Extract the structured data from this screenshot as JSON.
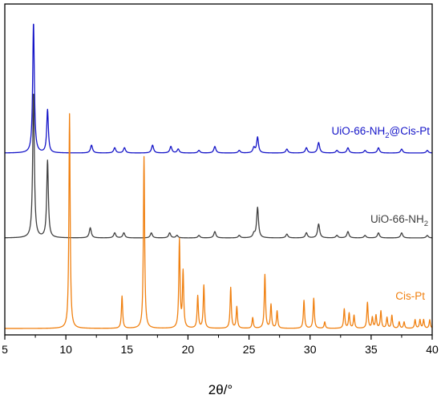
{
  "chart_data": {
    "type": "line",
    "xlabel": "2θ/°",
    "xlim": [
      5,
      40
    ],
    "x_ticks": [
      5,
      10,
      15,
      20,
      25,
      30,
      35,
      40
    ],
    "grid": false,
    "y_axis_shown": false,
    "colors": {
      "UiO-66-NH2@Cis-Pt": "#1515c8",
      "UiO-66-NH2": "#404040",
      "Cis-Pt": "#f08010"
    },
    "series": [
      {
        "name": "UiO-66-NH2@Cis-Pt",
        "label_parts": [
          "UiO-66-NH",
          "2",
          "@Cis-Pt"
        ],
        "baseline": 0.0,
        "peaks": [
          [
            7.35,
            1.0,
            0.08
          ],
          [
            8.5,
            0.33,
            0.08
          ],
          [
            12.1,
            0.06,
            0.1
          ],
          [
            14.0,
            0.04,
            0.1
          ],
          [
            14.8,
            0.04,
            0.1
          ],
          [
            17.1,
            0.06,
            0.1
          ],
          [
            18.6,
            0.05,
            0.1
          ],
          [
            19.2,
            0.03,
            0.1
          ],
          [
            20.9,
            0.02,
            0.1
          ],
          [
            22.2,
            0.05,
            0.1
          ],
          [
            24.2,
            0.02,
            0.1
          ],
          [
            25.4,
            0.04,
            0.1
          ],
          [
            25.7,
            0.12,
            0.09
          ],
          [
            28.1,
            0.03,
            0.1
          ],
          [
            29.7,
            0.04,
            0.1
          ],
          [
            30.7,
            0.08,
            0.1
          ],
          [
            32.2,
            0.02,
            0.1
          ],
          [
            33.1,
            0.04,
            0.1
          ],
          [
            34.5,
            0.02,
            0.1
          ],
          [
            35.6,
            0.04,
            0.1
          ],
          [
            37.5,
            0.03,
            0.1
          ],
          [
            39.6,
            0.02,
            0.1
          ]
        ]
      },
      {
        "name": "UiO-66-NH2",
        "label_parts": [
          "UiO-66-NH",
          "2",
          ""
        ],
        "baseline": 0.0,
        "peaks": [
          [
            7.35,
            1.15,
            0.08
          ],
          [
            8.5,
            0.61,
            0.08
          ],
          [
            12.0,
            0.08,
            0.1
          ],
          [
            14.0,
            0.04,
            0.1
          ],
          [
            14.75,
            0.04,
            0.1
          ],
          [
            17.0,
            0.04,
            0.1
          ],
          [
            18.5,
            0.04,
            0.1
          ],
          [
            19.1,
            0.02,
            0.1
          ],
          [
            20.9,
            0.02,
            0.1
          ],
          [
            22.2,
            0.05,
            0.1
          ],
          [
            24.2,
            0.02,
            0.1
          ],
          [
            25.4,
            0.03,
            0.1
          ],
          [
            25.7,
            0.24,
            0.09
          ],
          [
            28.1,
            0.03,
            0.1
          ],
          [
            29.7,
            0.04,
            0.1
          ],
          [
            30.7,
            0.11,
            0.1
          ],
          [
            32.2,
            0.02,
            0.1
          ],
          [
            33.1,
            0.05,
            0.1
          ],
          [
            34.5,
            0.02,
            0.1
          ],
          [
            35.6,
            0.04,
            0.1
          ],
          [
            37.5,
            0.04,
            0.1
          ],
          [
            39.6,
            0.02,
            0.1
          ]
        ]
      },
      {
        "name": "Cis-Pt",
        "label_parts": [
          "Cis-Pt",
          "",
          ""
        ],
        "baseline": 0.0,
        "peaks": [
          [
            10.3,
            1.0,
            0.06
          ],
          [
            14.6,
            0.15,
            0.06
          ],
          [
            16.4,
            0.8,
            0.06
          ],
          [
            19.3,
            0.41,
            0.06
          ],
          [
            19.6,
            0.26,
            0.06
          ],
          [
            20.8,
            0.15,
            0.06
          ],
          [
            21.3,
            0.2,
            0.06
          ],
          [
            23.5,
            0.19,
            0.06
          ],
          [
            24.0,
            0.1,
            0.06
          ],
          [
            25.3,
            0.05,
            0.06
          ],
          [
            26.3,
            0.25,
            0.06
          ],
          [
            26.8,
            0.11,
            0.06
          ],
          [
            27.3,
            0.08,
            0.06
          ],
          [
            29.5,
            0.13,
            0.06
          ],
          [
            30.3,
            0.14,
            0.06
          ],
          [
            31.2,
            0.03,
            0.06
          ],
          [
            32.8,
            0.09,
            0.06
          ],
          [
            33.2,
            0.07,
            0.06
          ],
          [
            33.6,
            0.06,
            0.06
          ],
          [
            34.7,
            0.12,
            0.06
          ],
          [
            35.1,
            0.05,
            0.06
          ],
          [
            35.4,
            0.06,
            0.06
          ],
          [
            35.8,
            0.08,
            0.06
          ],
          [
            36.3,
            0.05,
            0.06
          ],
          [
            36.7,
            0.06,
            0.06
          ],
          [
            37.3,
            0.03,
            0.06
          ],
          [
            37.7,
            0.03,
            0.06
          ],
          [
            38.6,
            0.04,
            0.06
          ],
          [
            39.0,
            0.04,
            0.06
          ],
          [
            39.3,
            0.04,
            0.06
          ],
          [
            39.8,
            0.04,
            0.06
          ]
        ]
      }
    ]
  }
}
